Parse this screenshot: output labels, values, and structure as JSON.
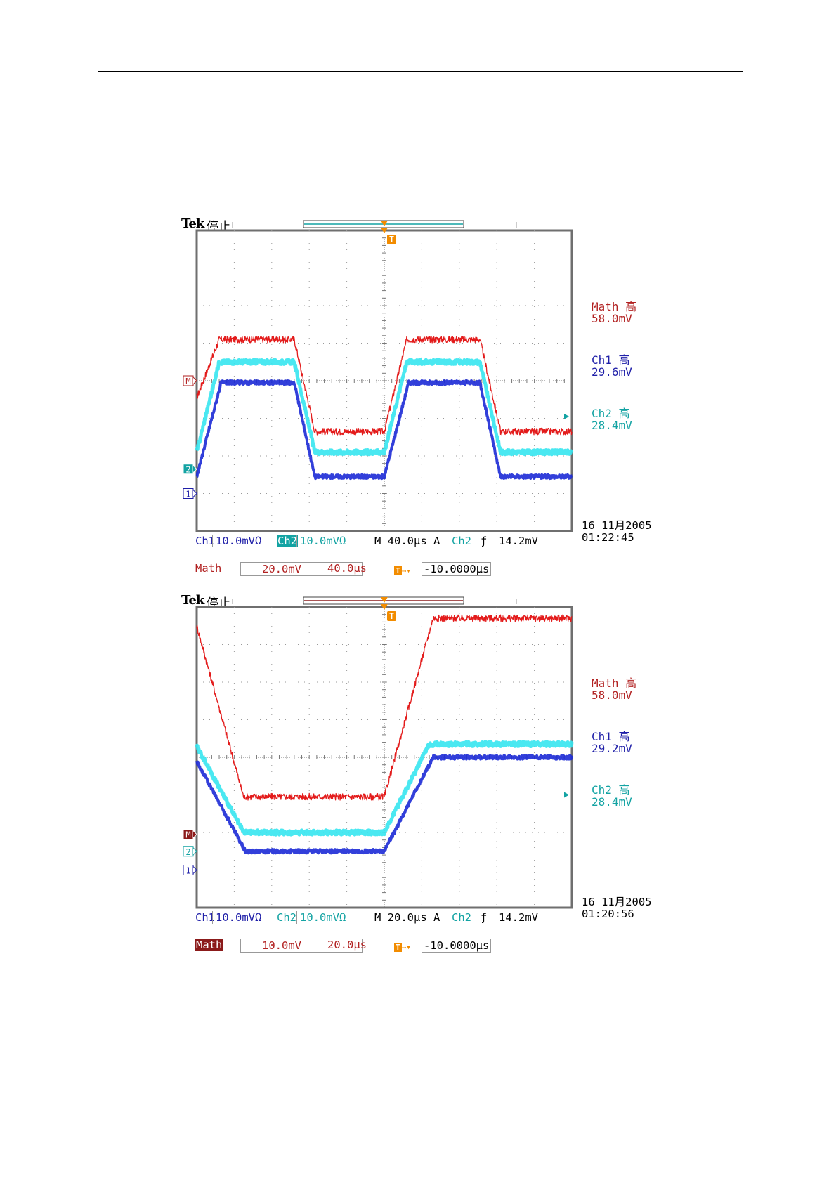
{
  "chart_data": [
    {
      "type": "line",
      "header": {
        "brand": "Tek",
        "status": "停止"
      },
      "readouts": [
        {
          "label": "Math 高",
          "value": "58.0mV",
          "color": "#b22222"
        },
        {
          "label": "Ch1 高",
          "value": "29.6mV",
          "color": "#1f1fa8"
        },
        {
          "label": "Ch2 高",
          "value": "28.4mV",
          "color": "#13a3a3"
        }
      ],
      "markers": {
        "math": "M",
        "ch2": "2",
        "ch1": "1",
        "trigger": "T"
      },
      "settings_row1": {
        "ch1": "Ch1",
        "ch1_scale": "10.0mVΩ",
        "ch2": "Ch2",
        "ch2_scale": "10.0mVΩ",
        "timebase": "M 40.0μs",
        "trigger_mode": "A",
        "trigger_source": "Ch2",
        "trigger_slope": "ƒ",
        "trigger_level": "14.2mV"
      },
      "settings_row2": {
        "math": "Math",
        "math_scale": "20.0mV",
        "math_time": "40.0μs",
        "delay": "-10.0000μs"
      },
      "date": "16 11月2005",
      "time": "01:22:45",
      "x_divisions": 10,
      "y_divisions": 8,
      "series": [
        {
          "name": "Math",
          "color": "#e31b1b",
          "points": [
            [
              0,
              3.55
            ],
            [
              0.6,
              5.1
            ],
            [
              2.6,
              5.1
            ],
            [
              3.15,
              2.65
            ],
            [
              5.0,
              2.65
            ],
            [
              5.6,
              5.1
            ],
            [
              7.55,
              5.1
            ],
            [
              8.1,
              2.65
            ],
            [
              10.0,
              2.65
            ]
          ]
        },
        {
          "name": "Ch2",
          "color": "#36e6f0",
          "points": [
            [
              0,
              2.1
            ],
            [
              0.6,
              4.5
            ],
            [
              2.6,
              4.5
            ],
            [
              3.15,
              2.1
            ],
            [
              5.0,
              2.1
            ],
            [
              5.6,
              4.5
            ],
            [
              7.55,
              4.5
            ],
            [
              8.1,
              2.1
            ],
            [
              10.0,
              2.1
            ]
          ]
        },
        {
          "name": "Ch1",
          "color": "#1c2ad6",
          "points": [
            [
              0,
              1.45
            ],
            [
              0.65,
              3.95
            ],
            [
              2.6,
              3.95
            ],
            [
              3.15,
              1.45
            ],
            [
              5.0,
              1.45
            ],
            [
              5.65,
              3.95
            ],
            [
              7.55,
              3.95
            ],
            [
              8.1,
              1.45
            ],
            [
              10.0,
              1.45
            ]
          ]
        }
      ]
    },
    {
      "type": "line",
      "header": {
        "brand": "Tek",
        "status": "停止"
      },
      "readouts": [
        {
          "label": "Math 高",
          "value": "58.0mV",
          "color": "#b22222"
        },
        {
          "label": "Ch1 高",
          "value": "29.2mV",
          "color": "#1f1fa8"
        },
        {
          "label": "Ch2 高",
          "value": "28.4mV",
          "color": "#13a3a3"
        }
      ],
      "markers": {
        "math": "M",
        "ch2": "2",
        "ch1": "1",
        "trigger": "T"
      },
      "settings_row1": {
        "ch1": "Ch1",
        "ch1_scale": "10.0mVΩ",
        "ch2": "Ch2",
        "ch2_scale": "10.0mVΩ",
        "timebase": "M 20.0μs",
        "trigger_mode": "A",
        "trigger_source": "Ch2",
        "trigger_slope": "ƒ",
        "trigger_level": "14.2mV"
      },
      "settings_row2": {
        "math": "Math",
        "math_scale": "10.0mV",
        "math_time": "20.0μs",
        "delay": "-10.0000μs"
      },
      "date": "16 11月2005",
      "time": "01:20:56",
      "x_divisions": 10,
      "y_divisions": 8,
      "series": [
        {
          "name": "Math",
          "color": "#e31b1b",
          "points": [
            [
              0,
              7.5
            ],
            [
              1.25,
              2.95
            ],
            [
              5.0,
              2.95
            ],
            [
              6.3,
              7.7
            ],
            [
              10.0,
              7.7
            ]
          ]
        },
        {
          "name": "Ch2",
          "color": "#36e6f0",
          "points": [
            [
              0,
              4.3
            ],
            [
              1.25,
              2.0
            ],
            [
              5.0,
              2.0
            ],
            [
              6.2,
              4.35
            ],
            [
              10.0,
              4.35
            ]
          ]
        },
        {
          "name": "Ch1",
          "color": "#1c2ad6",
          "points": [
            [
              0,
              3.9
            ],
            [
              1.3,
              1.5
            ],
            [
              5.0,
              1.5
            ],
            [
              6.3,
              4.0
            ],
            [
              10.0,
              4.0
            ]
          ]
        }
      ]
    }
  ]
}
